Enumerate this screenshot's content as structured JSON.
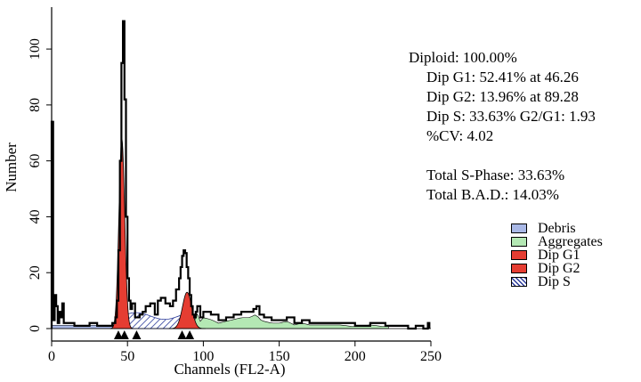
{
  "chart_data": {
    "type": "histogram",
    "xlabel": "Channels (FL2-A)",
    "ylabel": "Number",
    "xlim": [
      0,
      250
    ],
    "ylim": [
      0,
      115
    ],
    "x_ticks": [
      0,
      50,
      100,
      150,
      200,
      250
    ],
    "y_ticks": [
      0,
      20,
      40,
      60,
      80,
      100
    ],
    "grid": false,
    "histogram": {
      "channels": [
        0,
        1,
        2,
        3,
        4,
        5,
        6,
        7,
        8,
        9,
        10,
        15,
        20,
        25,
        30,
        35,
        40,
        42,
        43,
        44,
        45,
        46,
        47,
        48,
        49,
        50,
        51,
        52,
        53,
        55,
        58,
        60,
        62,
        65,
        68,
        70,
        72,
        75,
        78,
        80,
        82,
        84,
        85,
        86,
        87,
        88,
        89,
        90,
        91,
        92,
        93,
        94,
        95,
        96,
        98,
        100,
        105,
        110,
        115,
        120,
        125,
        130,
        133,
        135,
        137,
        140,
        145,
        150,
        155,
        160,
        165,
        170,
        175,
        180,
        190,
        200,
        210,
        220,
        222,
        225,
        230,
        235,
        240,
        245,
        248
      ],
      "counts": [
        74,
        3,
        12,
        8,
        2,
        6,
        4,
        9,
        2,
        2,
        2,
        1,
        1,
        2,
        1,
        1,
        2,
        4,
        10,
        28,
        60,
        95,
        110,
        82,
        40,
        18,
        10,
        7,
        9,
        4,
        5,
        6,
        8,
        9,
        5,
        10,
        11,
        9,
        8,
        10,
        14,
        18,
        22,
        26,
        28,
        27,
        22,
        18,
        12,
        8,
        5,
        4,
        6,
        8,
        4,
        6,
        5,
        3,
        4,
        5,
        6,
        6,
        7,
        8,
        5,
        4,
        3,
        3,
        4,
        2,
        3,
        2,
        2,
        2,
        2,
        1,
        2,
        1,
        1,
        1,
        1,
        0,
        1,
        0,
        2
      ]
    },
    "fit": {
      "dip_g1": {
        "center": 46.26,
        "peak": 68
      },
      "dip_g2": {
        "center": 89.28,
        "peak": 13
      },
      "dip_s_range": [
        46.26,
        89.28
      ],
      "aggregates_range": [
        90,
        222
      ]
    },
    "markers": [
      44,
      48,
      56,
      86,
      91
    ],
    "legend": [
      {
        "label": "Debris",
        "color": "#a9b8e6",
        "pattern": "solid"
      },
      {
        "label": "Aggregates",
        "color": "#b4e8b4",
        "pattern": "solid"
      },
      {
        "label": "Dip G1",
        "color": "#e53d32",
        "pattern": "solid"
      },
      {
        "label": "Dip G2",
        "color": "#e53d32",
        "pattern": "solid"
      },
      {
        "label": "Dip S",
        "color": "#2a3a9a",
        "pattern": "hatch"
      }
    ],
    "colors": {
      "debris": "#a9b8e6",
      "aggregates": "#b4e8b4",
      "g1": "#e53d32",
      "g2": "#e53d32",
      "s_hatch": "#2a3a9a"
    }
  },
  "stats": {
    "diploid": "Diploid: 100.00%",
    "g1": "Dip G1: 52.41% at 46.26",
    "g2": "Dip G2: 13.96% at 89.28",
    "s": "Dip S: 33.63% G2/G1: 1.93",
    "cv": "%CV: 4.02",
    "total_s": "Total S-Phase: 33.63%",
    "total_bad": "Total B.A.D.: 14.03%"
  }
}
